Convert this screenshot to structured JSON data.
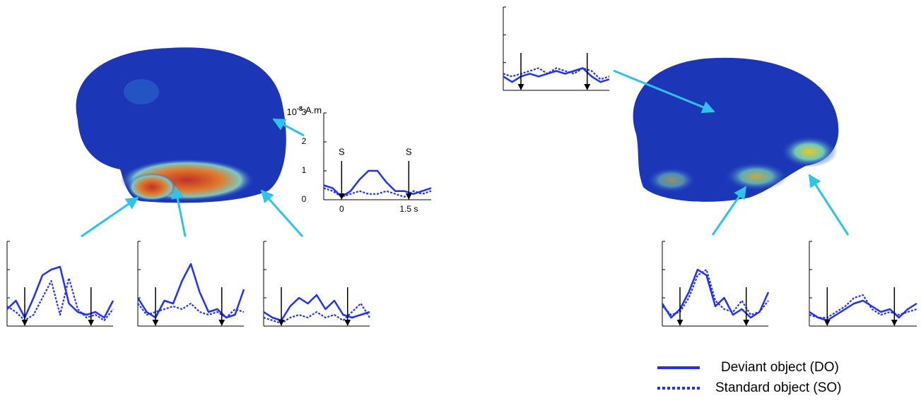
{
  "chart_data": [
    {
      "type": "line",
      "y_unit_base": "10",
      "y_unit_exponent": "-8",
      "y_unit": "A.m",
      "xlim": [
        -0.4,
        2.0
      ],
      "xticks": [
        0,
        {
          "value": 1.5,
          "label": "1.5 s"
        }
      ],
      "ylim": [
        0,
        3
      ],
      "yticks": [
        0,
        1,
        2,
        3
      ],
      "stimuli": [
        0,
        1.5
      ],
      "stimulus_labels": [
        "S",
        "S"
      ],
      "x": [
        -0.4,
        -0.2,
        0,
        0.2,
        0.4,
        0.6,
        0.8,
        1.0,
        1.2,
        1.4,
        1.6,
        1.8,
        2.0
      ],
      "series": [
        {
          "style": "solid",
          "color": "#1f2fff",
          "values": [
            0.5,
            0.4,
            0.1,
            0.3,
            0.7,
            1.0,
            1.0,
            0.6,
            0.3,
            0.3,
            0.2,
            0.3,
            0.4
          ]
        },
        {
          "style": "dotted",
          "color": "#1f2fff",
          "values": [
            0.4,
            0.3,
            0.1,
            0.2,
            0.3,
            0.2,
            0.2,
            0.3,
            0.2,
            0.1,
            0.3,
            0.2,
            0.3
          ]
        }
      ]
    },
    {
      "type": "line",
      "xlim": [
        -0.4,
        2.0
      ],
      "ylim": [
        0,
        3
      ],
      "yticks": [
        0,
        1,
        2,
        3
      ],
      "stimuli": [
        0,
        1.5
      ],
      "x": [
        -0.4,
        -0.2,
        0,
        0.2,
        0.4,
        0.6,
        0.8,
        1.0,
        1.2,
        1.4,
        1.6,
        1.8,
        2.0
      ],
      "series": [
        {
          "style": "solid",
          "color": "#1f2fff",
          "values": [
            0.6,
            0.9,
            0.3,
            1.0,
            1.8,
            2.0,
            2.1,
            0.8,
            0.5,
            0.4,
            0.5,
            0.3,
            0.9
          ]
        },
        {
          "style": "dotted",
          "color": "#1f2fff",
          "values": [
            0.7,
            0.5,
            0.2,
            0.4,
            1.0,
            1.6,
            0.4,
            1.7,
            0.6,
            0.3,
            0.4,
            0.2,
            0.6
          ]
        }
      ]
    },
    {
      "type": "line",
      "xlim": [
        -0.4,
        2.0
      ],
      "ylim": [
        0,
        3
      ],
      "yticks": [
        0,
        1,
        2,
        3
      ],
      "stimuli": [
        0,
        1.5
      ],
      "x": [
        -0.4,
        -0.2,
        0,
        0.2,
        0.4,
        0.6,
        0.8,
        1.0,
        1.2,
        1.4,
        1.6,
        1.8,
        2.0
      ],
      "series": [
        {
          "style": "solid",
          "color": "#1f2fff",
          "values": [
            1.0,
            0.5,
            0.3,
            0.9,
            0.8,
            1.6,
            2.2,
            1.2,
            0.5,
            0.6,
            0.3,
            0.4,
            1.3
          ]
        },
        {
          "style": "dotted",
          "color": "#1f2fff",
          "values": [
            0.8,
            0.4,
            0.5,
            0.6,
            0.7,
            0.6,
            0.8,
            0.5,
            0.4,
            0.5,
            0.3,
            0.6,
            0.5
          ]
        }
      ]
    },
    {
      "type": "line",
      "xlim": [
        -0.4,
        2.0
      ],
      "ylim": [
        0,
        3
      ],
      "yticks": [
        0,
        1,
        2,
        3
      ],
      "stimuli": [
        0,
        1.5
      ],
      "x": [
        -0.4,
        -0.2,
        0,
        0.2,
        0.4,
        0.6,
        0.8,
        1.0,
        1.2,
        1.4,
        1.6,
        1.8,
        2.0
      ],
      "series": [
        {
          "style": "solid",
          "color": "#1f2fff",
          "values": [
            0.5,
            0.3,
            0.2,
            0.7,
            1.0,
            0.8,
            1.1,
            0.6,
            0.9,
            0.4,
            0.3,
            0.4,
            0.5
          ]
        },
        {
          "style": "dotted",
          "color": "#1f2fff",
          "values": [
            0.3,
            0.2,
            0.1,
            0.3,
            0.4,
            0.3,
            0.5,
            0.3,
            0.4,
            0.2,
            0.5,
            0.8,
            0.3
          ]
        }
      ]
    },
    {
      "type": "line",
      "xlim": [
        -0.4,
        2.0
      ],
      "ylim": [
        0,
        3
      ],
      "yticks": [
        0,
        1,
        2,
        3
      ],
      "stimuli": [
        0,
        1.5
      ],
      "x": [
        -0.4,
        -0.2,
        0,
        0.2,
        0.4,
        0.6,
        0.8,
        1.0,
        1.2,
        1.4,
        1.6,
        1.8,
        2.0
      ],
      "series": [
        {
          "style": "solid",
          "color": "#1f2fff",
          "values": [
            0.5,
            0.3,
            0.5,
            0.6,
            0.5,
            0.6,
            0.7,
            0.6,
            0.7,
            0.8,
            0.5,
            0.3,
            0.4
          ]
        },
        {
          "style": "dotted",
          "color": "#1f2fff",
          "values": [
            0.6,
            0.5,
            0.6,
            0.7,
            0.8,
            0.6,
            0.8,
            0.7,
            0.6,
            0.8,
            0.7,
            0.4,
            0.5
          ]
        }
      ]
    },
    {
      "type": "line",
      "xlim": [
        -0.4,
        2.0
      ],
      "ylim": [
        0,
        3
      ],
      "yticks": [
        0,
        1,
        2,
        3
      ],
      "stimuli": [
        0,
        1.5
      ],
      "x": [
        -0.4,
        -0.2,
        0,
        0.2,
        0.4,
        0.6,
        0.8,
        1.0,
        1.2,
        1.4,
        1.6,
        1.8,
        2.0
      ],
      "series": [
        {
          "style": "solid",
          "color": "#1f2fff",
          "values": [
            0.8,
            0.3,
            0.6,
            1.2,
            2.0,
            1.8,
            0.7,
            1.0,
            0.4,
            0.6,
            0.3,
            0.5,
            1.2
          ]
        },
        {
          "style": "dotted",
          "color": "#1f2fff",
          "values": [
            0.7,
            0.4,
            0.5,
            1.0,
            1.8,
            2.0,
            0.9,
            0.6,
            0.5,
            0.9,
            0.4,
            0.5,
            0.9
          ]
        }
      ]
    },
    {
      "type": "line",
      "xlim": [
        -0.4,
        2.0
      ],
      "ylim": [
        0,
        3
      ],
      "yticks": [
        0,
        1,
        2,
        3
      ],
      "stimuli": [
        0,
        1.5
      ],
      "x": [
        -0.4,
        -0.2,
        0,
        0.2,
        0.4,
        0.6,
        0.8,
        1.0,
        1.2,
        1.4,
        1.6,
        1.8,
        2.0
      ],
      "series": [
        {
          "style": "solid",
          "color": "#1f2fff",
          "values": [
            0.5,
            0.3,
            0.2,
            0.4,
            0.6,
            0.8,
            0.9,
            0.7,
            0.5,
            0.6,
            0.3,
            0.6,
            0.8
          ]
        },
        {
          "style": "dotted",
          "color": "#1f2fff",
          "values": [
            0.4,
            0.3,
            0.3,
            0.5,
            0.7,
            1.0,
            1.1,
            0.6,
            0.4,
            0.5,
            0.4,
            0.5,
            0.6
          ]
        }
      ]
    }
  ],
  "legend": [
    {
      "name": "Deviant object (DO)",
      "style": "solid",
      "color": "#1f2fff"
    },
    {
      "name": "Standard object (SO)",
      "style": "dotted",
      "color": "#1f2fff"
    }
  ]
}
